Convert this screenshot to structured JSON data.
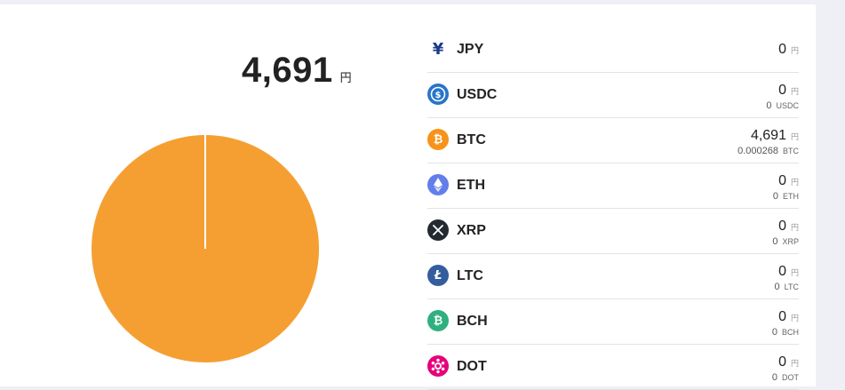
{
  "summary": {
    "total_value": "4,691",
    "total_unit": "円"
  },
  "chart_data": {
    "type": "pie",
    "categories": [
      "BTC"
    ],
    "values": [
      4691
    ],
    "colors": [
      "#f59f33"
    ]
  },
  "assets": [
    {
      "symbol": "JPY",
      "icon": "yen-icon",
      "color": "#1a3a8a",
      "jpy_value": "0",
      "jpy_unit": "円",
      "qty": null,
      "qty_unit": null
    },
    {
      "symbol": "USDC",
      "icon": "usdc-icon",
      "color": "#2775ca",
      "jpy_value": "0",
      "jpy_unit": "円",
      "qty": "0",
      "qty_unit": "USDC"
    },
    {
      "symbol": "BTC",
      "icon": "bitcoin-icon",
      "color": "#f7931a",
      "jpy_value": "4,691",
      "jpy_unit": "円",
      "qty": "0.000268",
      "qty_unit": "BTC"
    },
    {
      "symbol": "ETH",
      "icon": "ethereum-icon",
      "color": "#627eea",
      "jpy_value": "0",
      "jpy_unit": "円",
      "qty": "0",
      "qty_unit": "ETH"
    },
    {
      "symbol": "XRP",
      "icon": "xrp-icon",
      "color": "#23292f",
      "jpy_value": "0",
      "jpy_unit": "円",
      "qty": "0",
      "qty_unit": "XRP"
    },
    {
      "symbol": "LTC",
      "icon": "litecoin-icon",
      "color": "#345d9d",
      "jpy_value": "0",
      "jpy_unit": "円",
      "qty": "0",
      "qty_unit": "LTC"
    },
    {
      "symbol": "BCH",
      "icon": "bitcoin-cash-icon",
      "color": "#2fb07f",
      "jpy_value": "0",
      "jpy_unit": "円",
      "qty": "0",
      "qty_unit": "BCH"
    },
    {
      "symbol": "DOT",
      "icon": "polkadot-icon",
      "color": "#e6007a",
      "jpy_value": "0",
      "jpy_unit": "円",
      "qty": "0",
      "qty_unit": "DOT"
    }
  ]
}
